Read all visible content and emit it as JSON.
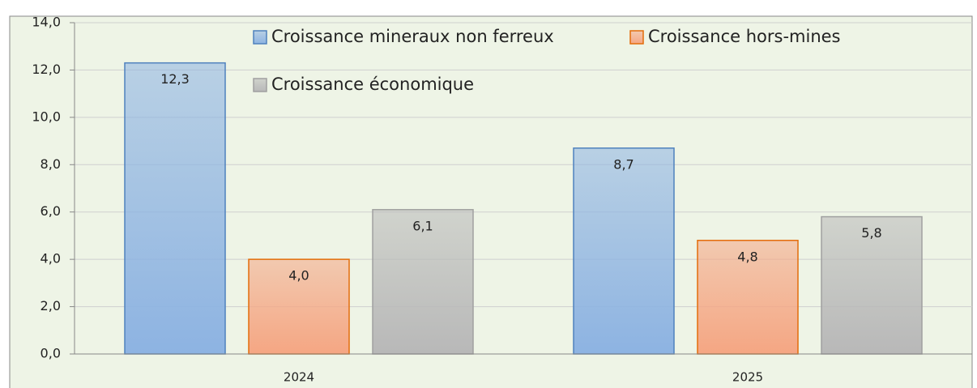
{
  "chart_data": {
    "type": "bar",
    "categories": [
      "2024",
      "2025"
    ],
    "series": [
      {
        "name": "Croissance mineraux non ferreux",
        "color": "#8db3e2",
        "edgecolor": "#4f81bd",
        "values": [
          12.3,
          8.7
        ],
        "value_labels": [
          "12,3",
          "8,7"
        ]
      },
      {
        "name": "Croissance hors-mines",
        "color": "#f5a683",
        "edgecolor": "#e36c0a",
        "values": [
          4.0,
          4.8
        ],
        "value_labels": [
          "4,0",
          "4,8"
        ]
      },
      {
        "name": "Croissance économique",
        "color": "#b8b8b8",
        "edgecolor": "#a0a0a0",
        "values": [
          6.1,
          5.8
        ],
        "value_labels": [
          "6,1",
          "5,8"
        ]
      }
    ],
    "ylim": [
      0,
      14
    ],
    "yticks": [
      {
        "value": 0,
        "label": "0,0"
      },
      {
        "value": 2,
        "label": "2,0"
      },
      {
        "value": 4,
        "label": "4,0"
      },
      {
        "value": 6,
        "label": "6,0"
      },
      {
        "value": 8,
        "label": "8,0"
      },
      {
        "value": 10,
        "label": "10,0"
      },
      {
        "value": 12,
        "label": "12,0"
      },
      {
        "value": 14,
        "label": "14,0"
      }
    ],
    "grid": true,
    "legend": "top"
  }
}
